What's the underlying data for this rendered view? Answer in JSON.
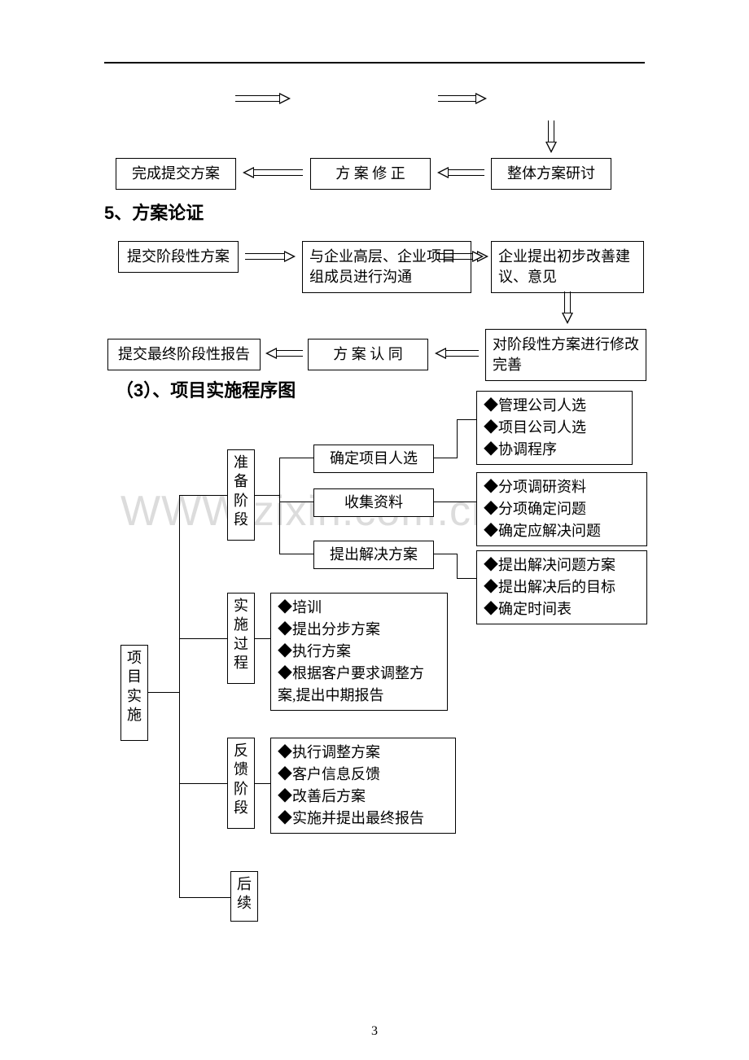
{
  "page_number": "3",
  "watermark": "WWW.zixin.com.cn",
  "flow1": {
    "row_bottom": {
      "left": "完成提交方案",
      "center": "方 案 修 正",
      "right": "整体方案研讨"
    }
  },
  "heading1": "5、方案论证",
  "flow2": {
    "row_top": {
      "left": "提交阶段性方案",
      "center": "与企业高层、企业项目组成员进行沟通",
      "right": "企业提出初步改善建议、意见"
    },
    "row_bottom": {
      "left": "提交最终阶段性报告",
      "center": "方 案 认 同",
      "right": "对阶段性方案进行修改完善"
    }
  },
  "heading2": "（3）、项目实施程序图",
  "impl": {
    "root": "项目实施",
    "stages": {
      "prep": "准备阶段",
      "exec": "实施过程",
      "feedback": "反馈阶段",
      "follow": "后续"
    },
    "prep_rows": {
      "r1": "确定项目人选",
      "r2": "收集资料",
      "r3": "提出解决方案"
    },
    "exec_items": [
      "◆培训",
      "◆提出分步方案",
      "◆执行方案",
      "◆根据客户要求调整方案,提出中期报告"
    ],
    "feedback_items": [
      "◆执行调整方案",
      "◆客户信息反馈",
      "◆改善后方案",
      "◆实施并提出最终报告"
    ],
    "side": {
      "s1": [
        "◆管理公司人选",
        "◆项目公司人选",
        "◆协调程序"
      ],
      "s2": [
        "◆分项调研资料",
        "◆分项确定问题",
        "◆确定应解决问题"
      ],
      "s3": [
        "◆提出解决问题方案",
        "◆提出解决后的目标",
        "◆确定时间表"
      ]
    }
  },
  "colors": {
    "border": "#000000",
    "background": "#ffffff",
    "watermark": "#dcdcdc"
  }
}
